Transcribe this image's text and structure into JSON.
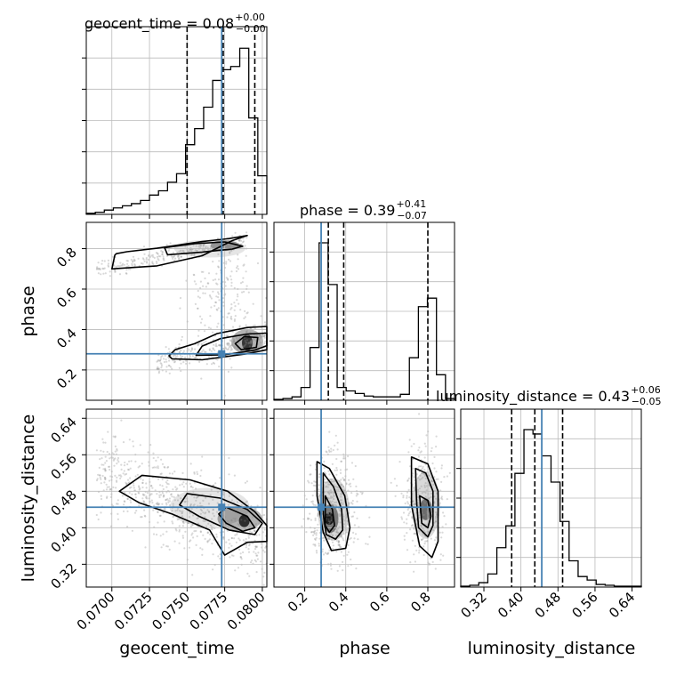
{
  "chart_data": {
    "type": "corner",
    "parameters": [
      "geocent_time",
      "phase",
      "luminosity_distance"
    ],
    "truth": {
      "geocent_time": 0.0773,
      "phase": 0.28,
      "luminosity_distance": 0.445
    },
    "titles": [
      {
        "name": "geocent_time",
        "value": "0.08",
        "plus": "+0.00",
        "minus": "−0.00"
      },
      {
        "name": "phase",
        "value": "0.39",
        "plus": "+0.41",
        "minus": "−0.07"
      },
      {
        "name": "luminosity_distance",
        "value": "0.43",
        "plus": "+0.06",
        "minus": "−0.05"
      }
    ],
    "axes": {
      "geocent_time": {
        "range": [
          0.0683,
          0.0803
        ],
        "ticks": [
          0.07,
          0.0725,
          0.075,
          0.0775,
          0.08
        ],
        "tick_labels": [
          "0.0700",
          "0.0725",
          "0.0750",
          "0.0775",
          "0.0800"
        ]
      },
      "phase": {
        "range": [
          0.05,
          0.93
        ],
        "ticks": [
          0.2,
          0.4,
          0.6,
          0.8
        ],
        "tick_labels": [
          "0.2",
          "0.4",
          "0.6",
          "0.8"
        ]
      },
      "luminosity_distance": {
        "range": [
          0.27,
          0.66
        ],
        "ticks": [
          0.32,
          0.4,
          0.48,
          0.56,
          0.64
        ],
        "tick_labels": [
          "0.32",
          "0.40",
          "0.48",
          "0.56",
          "0.64"
        ]
      }
    },
    "histograms": {
      "geocent_time": {
        "bin_edges": [
          0.0683,
          0.0689,
          0.0695,
          0.0701,
          0.0707,
          0.0713,
          0.0719,
          0.0725,
          0.0731,
          0.0737,
          0.0743,
          0.0749,
          0.0755,
          0.0761,
          0.0767,
          0.0773,
          0.0779,
          0.0785,
          0.0791,
          0.0797,
          0.0803
        ],
        "counts": [
          1,
          2,
          4,
          6,
          8,
          10,
          13,
          18,
          22,
          30,
          38,
          65,
          80,
          100,
          125,
          135,
          138,
          155,
          90,
          36
        ],
        "quantiles": [
          0.075,
          0.0774,
          0.0795
        ]
      },
      "phase": {
        "bin_edges": [
          0.05,
          0.094,
          0.138,
          0.182,
          0.226,
          0.27,
          0.314,
          0.358,
          0.402,
          0.446,
          0.49,
          0.534,
          0.578,
          0.622,
          0.666,
          0.71,
          0.754,
          0.798,
          0.842,
          0.886,
          0.93
        ],
        "counts": [
          1,
          2,
          4,
          15,
          62,
          185,
          136,
          15,
          11,
          8,
          5,
          4,
          4,
          4,
          7,
          50,
          110,
          120,
          30,
          2
        ],
        "quantiles": [
          0.315,
          0.39,
          0.8
        ]
      },
      "luminosity_distance": {
        "bin_edges": [
          0.27,
          0.2895,
          0.309,
          0.3285,
          0.348,
          0.3675,
          0.387,
          0.4065,
          0.426,
          0.4455,
          0.465,
          0.4845,
          0.504,
          0.5235,
          0.543,
          0.5625,
          0.582,
          0.6015,
          0.621,
          0.6405,
          0.66
        ],
        "counts": [
          1,
          2,
          5,
          15,
          45,
          70,
          130,
          180,
          175,
          150,
          120,
          75,
          30,
          12,
          8,
          3,
          2,
          1,
          1,
          1
        ],
        "quantiles": [
          0.38,
          0.43,
          0.49
        ]
      }
    },
    "hist2d": [
      {
        "x": "geocent_time",
        "y": "phase",
        "contours": [
          [
            [
              0.07,
              0.7
            ],
            [
              0.073,
              0.715
            ],
            [
              0.076,
              0.765
            ],
            [
              0.078,
              0.84
            ],
            [
              0.079,
              0.865
            ],
            [
              0.0778,
              0.85
            ],
            [
              0.076,
              0.835
            ],
            [
              0.073,
              0.802
            ],
            [
              0.071,
              0.785
            ],
            [
              0.0703,
              0.775
            ],
            [
              0.0702,
              0.768
            ]
          ],
          [
            [
              0.0737,
              0.77
            ],
            [
              0.076,
              0.783
            ],
            [
              0.078,
              0.798
            ],
            [
              0.0787,
              0.812
            ],
            [
              0.0775,
              0.833
            ],
            [
              0.0755,
              0.825
            ],
            [
              0.0735,
              0.805
            ]
          ],
          [
            [
              0.074,
              0.255
            ],
            [
              0.076,
              0.25
            ],
            [
              0.079,
              0.28
            ],
            [
              0.0803,
              0.3
            ],
            [
              0.0803,
              0.415
            ],
            [
              0.079,
              0.41
            ],
            [
              0.077,
              0.38
            ],
            [
              0.0755,
              0.33
            ],
            [
              0.0742,
              0.3
            ],
            [
              0.0738,
              0.27
            ]
          ],
          [
            [
              0.0756,
              0.272
            ],
            [
              0.0775,
              0.275
            ],
            [
              0.0795,
              0.298
            ],
            [
              0.0803,
              0.32
            ],
            [
              0.0803,
              0.382
            ],
            [
              0.079,
              0.378
            ],
            [
              0.0772,
              0.355
            ],
            [
              0.076,
              0.318
            ]
          ],
          [
            [
              0.0786,
              0.3
            ],
            [
              0.0796,
              0.312
            ],
            [
              0.0797,
              0.36
            ],
            [
              0.0788,
              0.365
            ],
            [
              0.0782,
              0.33
            ]
          ]
        ]
      },
      {
        "x": "geocent_time",
        "y": "luminosity_distance",
        "contours": [
          [
            [
              0.072,
              0.515
            ],
            [
              0.0752,
              0.505
            ],
            [
              0.0777,
              0.48
            ],
            [
              0.0795,
              0.435
            ],
            [
              0.0803,
              0.405
            ],
            [
              0.0803,
              0.37
            ],
            [
              0.079,
              0.368
            ],
            [
              0.0775,
              0.34
            ],
            [
              0.0765,
              0.395
            ],
            [
              0.074,
              0.43
            ],
            [
              0.0718,
              0.455
            ],
            [
              0.0705,
              0.48
            ]
          ],
          [
            [
              0.075,
              0.475
            ],
            [
              0.0772,
              0.465
            ],
            [
              0.079,
              0.44
            ],
            [
              0.08,
              0.41
            ],
            [
              0.0795,
              0.385
            ],
            [
              0.0778,
              0.395
            ],
            [
              0.0758,
              0.425
            ],
            [
              0.0745,
              0.45
            ]
          ],
          [
            [
              0.0776,
              0.445
            ],
            [
              0.079,
              0.425
            ],
            [
              0.0795,
              0.4
            ],
            [
              0.0787,
              0.392
            ],
            [
              0.0776,
              0.41
            ],
            [
              0.0771,
              0.43
            ]
          ]
        ]
      },
      {
        "x": "phase",
        "y": "luminosity_distance",
        "contours": [
          [
            [
              0.26,
              0.545
            ],
            [
              0.32,
              0.53
            ],
            [
              0.395,
              0.47
            ],
            [
              0.42,
              0.4
            ],
            [
              0.4,
              0.355
            ],
            [
              0.33,
              0.35
            ],
            [
              0.29,
              0.39
            ],
            [
              0.26,
              0.47
            ]
          ],
          [
            [
              0.29,
              0.52
            ],
            [
              0.34,
              0.49
            ],
            [
              0.38,
              0.44
            ],
            [
              0.385,
              0.395
            ],
            [
              0.35,
              0.375
            ],
            [
              0.305,
              0.385
            ],
            [
              0.29,
              0.43
            ]
          ],
          [
            [
              0.3,
              0.47
            ],
            [
              0.335,
              0.44
            ],
            [
              0.345,
              0.405
            ],
            [
              0.32,
              0.39
            ],
            [
              0.3,
              0.405
            ]
          ],
          [
            [
              0.72,
              0.555
            ],
            [
              0.8,
              0.54
            ],
            [
              0.85,
              0.48
            ],
            [
              0.85,
              0.37
            ],
            [
              0.82,
              0.335
            ],
            [
              0.76,
              0.36
            ],
            [
              0.72,
              0.45
            ]
          ],
          [
            [
              0.74,
              0.53
            ],
            [
              0.79,
              0.52
            ],
            [
              0.825,
              0.48
            ],
            [
              0.825,
              0.405
            ],
            [
              0.8,
              0.38
            ],
            [
              0.755,
              0.4
            ],
            [
              0.745,
              0.46
            ]
          ],
          [
            [
              0.76,
              0.47
            ],
            [
              0.8,
              0.46
            ],
            [
              0.815,
              0.425
            ],
            [
              0.8,
              0.4
            ],
            [
              0.77,
              0.41
            ]
          ]
        ]
      }
    ]
  },
  "colors": {
    "truth": "#4682b4",
    "grid": "#bbbbbb",
    "line": "#000000",
    "points": "#8a8a8a"
  }
}
